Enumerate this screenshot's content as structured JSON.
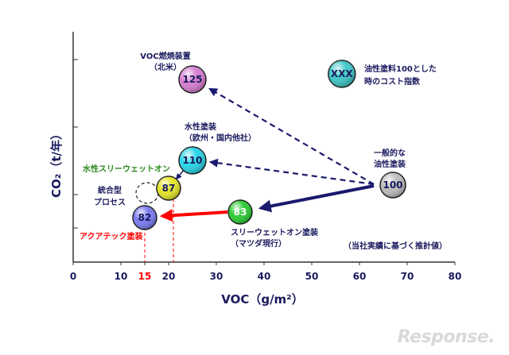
{
  "chart_data": {
    "type": "scatter",
    "title": "",
    "xlabel": "VOC（g/m²）",
    "ylabel": "CO₂（t/年）",
    "xlim": [
      0,
      80
    ],
    "xticks": [
      "0",
      "10",
      "15",
      "20",
      "30",
      "40",
      "50",
      "60",
      "70",
      "80"
    ],
    "highlight_tick": "15",
    "grid": false,
    "points": [
      {
        "id": "voc-incinerator",
        "x": 25,
        "value": "125",
        "color": "#d77fd0",
        "labels": [
          "VOC燃焼装置",
          "（北米）"
        ],
        "label_color": "#1a1a5e"
      },
      {
        "id": "cost-legend",
        "x": 57,
        "value": "XXX",
        "color": "#40c8c8",
        "labels": [
          "油性塗料100とした",
          "時のコスト指数"
        ],
        "label_color": "#1a1a5e"
      },
      {
        "id": "waterborne",
        "x": 25,
        "value": "110",
        "color": "#29d6e8",
        "labels": [
          "水性塗装",
          "（欧州・国内他社）"
        ],
        "label_color": "#1a1a5e"
      },
      {
        "id": "water-3wet-on",
        "x": 20,
        "value": "87",
        "color": "#e3e62a",
        "labels": [
          "水性スリーウェットオン"
        ],
        "label_color": "#2a8a1a"
      },
      {
        "id": "solventborne",
        "x": 67,
        "value": "100",
        "color": "#bdbdbd",
        "labels": [
          "一般的な",
          "油性塗装"
        ],
        "label_color": "#1a1a5e"
      },
      {
        "id": "3wet-on",
        "x": 35,
        "value": "83",
        "color": "#2dcc35",
        "labels": [
          "スリーウェットオン塗装",
          "（マツダ現行）"
        ],
        "label_color": "#1a1a5e"
      },
      {
        "id": "aqua-tech",
        "x": 15,
        "value": "82",
        "color": "#7b7bf0",
        "labels": [
          "アクアテック塗装"
        ],
        "label_color": "#ff0000"
      }
    ],
    "integrated_process_label": [
      "統合型",
      "プロセス"
    ],
    "note": "（当社実績に基づく推計値）"
  },
  "watermark": "Response."
}
